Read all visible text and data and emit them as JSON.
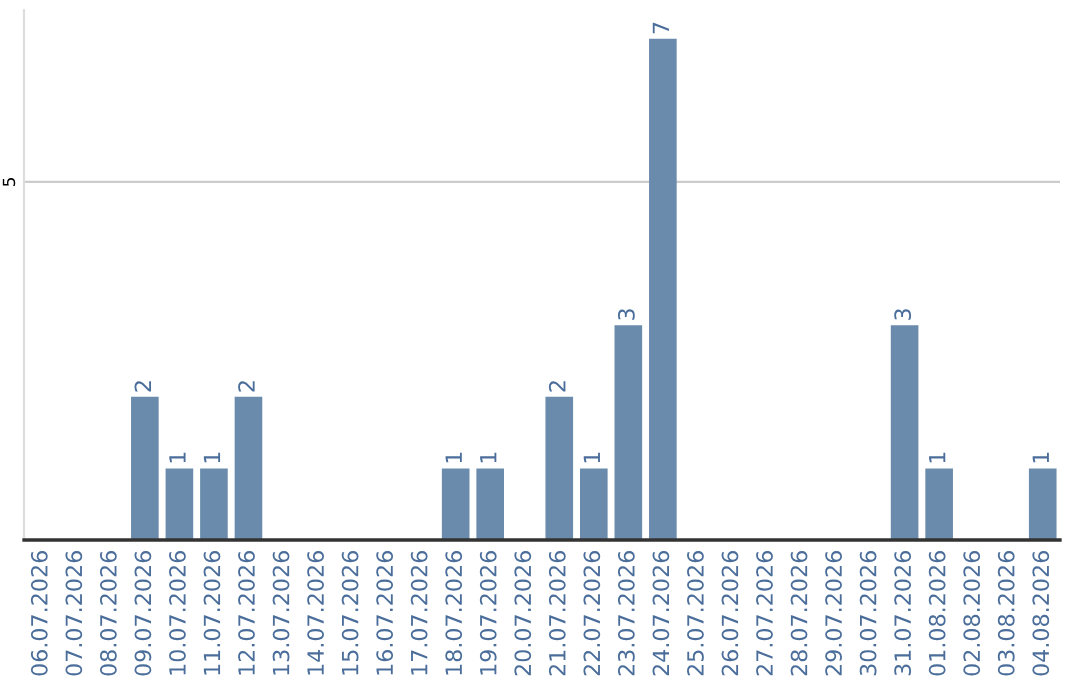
{
  "chart_data": {
    "type": "bar",
    "categories": [
      "06.07.2026",
      "07.07.2026",
      "08.07.2026",
      "09.07.2026",
      "10.07.2026",
      "11.07.2026",
      "12.07.2026",
      "13.07.2026",
      "14.07.2026",
      "15.07.2026",
      "16.07.2026",
      "17.07.2026",
      "18.07.2026",
      "19.07.2026",
      "20.07.2026",
      "21.07.2026",
      "22.07.2026",
      "23.07.2026",
      "24.07.2026",
      "25.07.2026",
      "26.07.2026",
      "27.07.2026",
      "28.07.2026",
      "29.07.2026",
      "30.07.2026",
      "31.07.2026",
      "01.08.2026",
      "02.08.2026",
      "03.08.2026",
      "04.08.2026"
    ],
    "values": [
      0,
      0,
      0,
      2,
      1,
      1,
      2,
      0,
      0,
      0,
      0,
      0,
      1,
      1,
      0,
      2,
      1,
      3,
      7,
      0,
      0,
      0,
      0,
      0,
      0,
      3,
      1,
      0,
      0,
      1
    ],
    "value_labels": [
      null,
      null,
      null,
      "2",
      "1",
      "1",
      "2",
      null,
      null,
      null,
      null,
      null,
      "1",
      "1",
      null,
      "2",
      "1",
      "3",
      "7",
      null,
      null,
      null,
      null,
      null,
      null,
      "3",
      "1",
      null,
      null,
      "1"
    ],
    "color": "#6a8bab",
    "ylim": [
      0,
      7.4
    ],
    "yticks": [
      5
    ],
    "grid": "y"
  }
}
